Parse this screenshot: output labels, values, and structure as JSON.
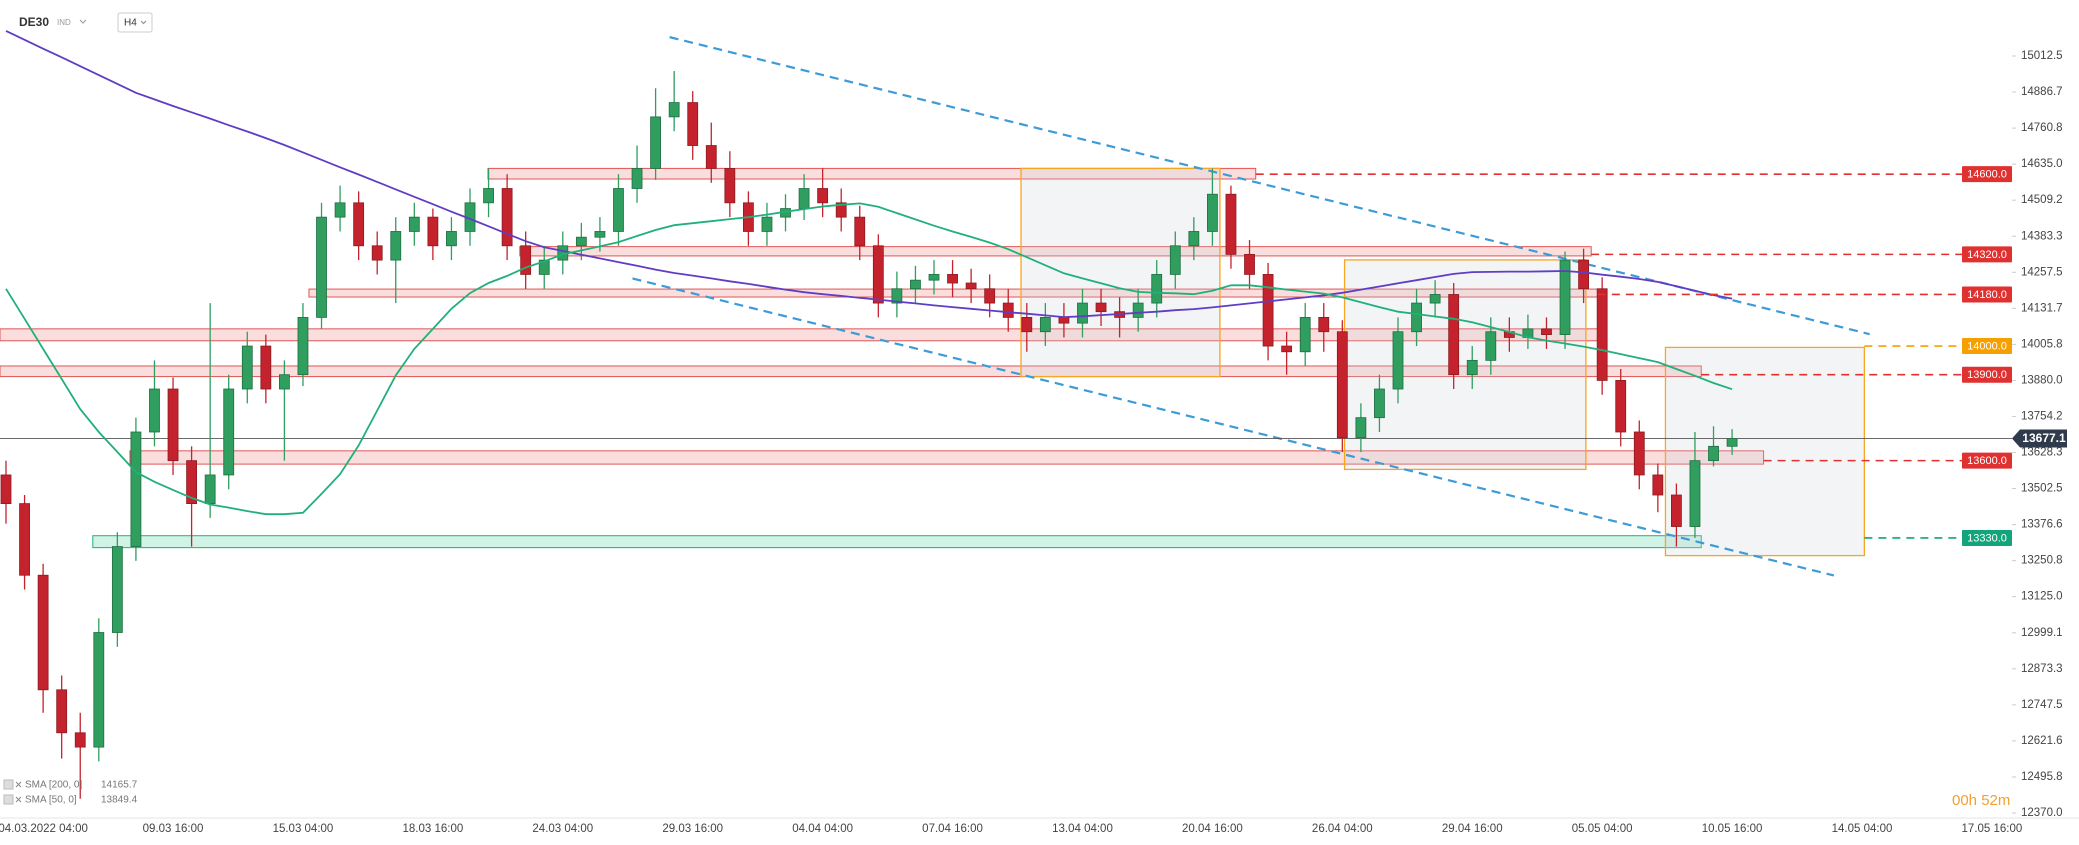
{
  "header": {
    "symbol": "DE30",
    "market": "IND",
    "timeframe": "H4"
  },
  "timer": "00h 52m",
  "chart_data": {
    "type": "candlestick",
    "categories": [
      null,
      null,
      "04.03.2022 04:00",
      null,
      null,
      null,
      null,
      null,
      null,
      "09.03 16:00",
      null,
      null,
      null,
      null,
      null,
      null,
      "15.03 04:00",
      null,
      null,
      null,
      null,
      null,
      null,
      "18.03 16:00",
      null,
      null,
      null,
      null,
      null,
      null,
      "24.03 04:00",
      null,
      null,
      null,
      null,
      null,
      null,
      "29.03 16:00",
      null,
      null,
      null,
      null,
      null,
      null,
      "04.04 04:00",
      null,
      null,
      null,
      null,
      null,
      null,
      "07.04 16:00",
      null,
      null,
      null,
      null,
      null,
      null,
      "13.04 04:00",
      null,
      null,
      null,
      null,
      null,
      null,
      "20.04 16:00",
      null,
      null,
      null,
      null,
      null,
      null,
      "26.04 04:00",
      null,
      null,
      null,
      null,
      null,
      null,
      "29.04 16:00",
      null,
      null,
      null,
      null,
      null,
      null,
      "05.05 04:00",
      null,
      null,
      null,
      null,
      null,
      null,
      "10.05 16:00",
      null,
      null,
      null,
      null,
      null,
      null,
      "14.05 04:00",
      null,
      null,
      null,
      null,
      null,
      null,
      "17.05 16:00",
      null,
      null
    ],
    "open": [
      13550,
      13450,
      13200,
      12800,
      12650,
      12600,
      13000,
      13300,
      13700,
      13850,
      13600,
      13450,
      13550,
      13850,
      14000,
      13850,
      13900,
      14100,
      14450,
      14500,
      14350,
      14300,
      14400,
      14450,
      14350,
      14400,
      14500,
      14550,
      14350,
      14250,
      14300,
      14350,
      14380,
      14400,
      14550,
      14620,
      14800,
      14850,
      14700,
      14620,
      14500,
      14400,
      14450,
      14480,
      14550,
      14500,
      14450,
      14350,
      14150,
      14200,
      14230,
      14250,
      14220,
      14200,
      14150,
      14100,
      14050,
      14100,
      14080,
      14150,
      14120,
      14100,
      14150,
      14250,
      14350,
      14400,
      14530,
      14320,
      14250,
      14000,
      13980,
      14100,
      14050,
      13680,
      13750,
      13850,
      14050,
      14150,
      14180,
      13900,
      13950,
      14050,
      14030,
      14060,
      14040,
      14300,
      14200,
      13880,
      13700,
      13550,
      13480,
      13370,
      13600,
      13650,
      null,
      null,
      null,
      null,
      null,
      null,
      null,
      null,
      null,
      null,
      null,
      null,
      null,
      null,
      null,
      null
    ],
    "high": [
      13600,
      13480,
      13240,
      12850,
      12720,
      13050,
      13350,
      13750,
      13950,
      13890,
      13650,
      14150,
      13900,
      14050,
      14040,
      13950,
      14150,
      14500,
      14560,
      14540,
      14400,
      14450,
      14500,
      14480,
      14450,
      14550,
      14620,
      14600,
      14400,
      14350,
      14400,
      14430,
      14450,
      14600,
      14700,
      14900,
      14960,
      14890,
      14780,
      14680,
      14540,
      14500,
      14530,
      14600,
      14620,
      14550,
      14490,
      14390,
      14260,
      14280,
      14300,
      14300,
      14270,
      14250,
      14200,
      14150,
      14150,
      14150,
      14200,
      14200,
      14170,
      14200,
      14300,
      14400,
      14450,
      14620,
      14560,
      14370,
      14290,
      14050,
      14150,
      14150,
      14090,
      13800,
      13900,
      14100,
      14200,
      14230,
      14220,
      14000,
      14100,
      14100,
      14110,
      14100,
      14330,
      14340,
      14240,
      13920,
      13740,
      13590,
      13520,
      13700,
      13720,
      13710,
      null,
      null,
      null,
      null,
      null,
      null,
      null,
      null,
      null,
      null,
      null,
      null,
      null,
      null,
      null,
      null
    ],
    "low": [
      13380,
      13150,
      12720,
      12560,
      12420,
      12550,
      12950,
      13250,
      13650,
      13550,
      13300,
      13400,
      13500,
      13800,
      13800,
      13600,
      13860,
      14060,
      14400,
      14300,
      14250,
      14150,
      14350,
      14300,
      14300,
      14350,
      14450,
      14300,
      14200,
      14200,
      14250,
      14300,
      14330,
      14350,
      14500,
      14580,
      14750,
      14650,
      14570,
      14450,
      14350,
      14350,
      14400,
      14440,
      14450,
      14400,
      14300,
      14100,
      14100,
      14150,
      14180,
      14170,
      14150,
      14100,
      14050,
      13980,
      14000,
      14030,
      14030,
      14070,
      14030,
      14050,
      14100,
      14200,
      14300,
      14350,
      14270,
      14200,
      13950,
      13900,
      13930,
      13980,
      13630,
      13630,
      13700,
      13800,
      14000,
      14100,
      13850,
      13850,
      13900,
      13980,
      13990,
      13990,
      13990,
      14150,
      13830,
      13650,
      13500,
      13420,
      13300,
      13330,
      13580,
      13620,
      null,
      null,
      null,
      null,
      null,
      null,
      null,
      null,
      null,
      null,
      null,
      null,
      null,
      null,
      null,
      null
    ],
    "close": [
      13450,
      13200,
      12800,
      12650,
      12600,
      13000,
      13300,
      13700,
      13850,
      13600,
      13450,
      13550,
      13850,
      14000,
      13850,
      13900,
      14100,
      14450,
      14500,
      14350,
      14300,
      14400,
      14450,
      14350,
      14400,
      14500,
      14550,
      14350,
      14250,
      14300,
      14350,
      14380,
      14400,
      14550,
      14620,
      14800,
      14850,
      14700,
      14620,
      14500,
      14400,
      14450,
      14480,
      14550,
      14500,
      14450,
      14350,
      14150,
      14200,
      14230,
      14250,
      14220,
      14200,
      14150,
      14100,
      14050,
      14100,
      14080,
      14150,
      14120,
      14100,
      14150,
      14250,
      14350,
      14400,
      14530,
      14320,
      14250,
      14000,
      13980,
      14100,
      14050,
      13680,
      13750,
      13850,
      14050,
      14150,
      14180,
      13900,
      13950,
      14050,
      14030,
      14060,
      14040,
      14300,
      14200,
      13880,
      13700,
      13550,
      13480,
      13370,
      13600,
      13650,
      13677.1,
      null,
      null,
      null,
      null,
      null,
      null,
      null,
      null,
      null,
      null,
      null,
      null,
      null,
      null,
      null,
      null
    ],
    "up_color": "#2f9e5f",
    "down_color": "#c4232d",
    "series": [
      {
        "name": "SMA [200, 0]",
        "color": "#5f3dc4",
        "values": [
          15100,
          15069,
          15038,
          15008,
          14977,
          14946,
          14915,
          14884,
          14861,
          14838,
          14816,
          14794,
          14771,
          14749,
          14726,
          14702,
          14676,
          14650,
          14624,
          14599,
          14573,
          14547,
          14521,
          14495,
          14469,
          14444,
          14418,
          14392,
          14366,
          14345,
          14332,
          14319,
          14306,
          14293,
          14280,
          14267,
          14255,
          14246,
          14236,
          14226,
          14217,
          14207,
          14197,
          14188,
          14181,
          14175,
          14168,
          14162,
          14155,
          14149,
          14142,
          14136,
          14130,
          14124,
          14118,
          14113,
          14107,
          14101,
          14104,
          14108,
          14112,
          14116,
          14120,
          14125,
          14129,
          14135,
          14142,
          14149,
          14156,
          14163,
          14170,
          14177,
          14186,
          14197,
          14208,
          14219,
          14230,
          14241,
          14252,
          14258,
          14259,
          14260,
          14260,
          14261,
          14262,
          14257,
          14249,
          14242,
          14234,
          14224,
          14209,
          14193,
          14178,
          14165.7,
          null,
          null,
          null,
          null,
          null,
          null,
          null,
          null,
          null,
          null,
          null,
          null,
          null,
          null,
          null,
          null
        ]
      },
      {
        "name": "SMA [50, 0]",
        "color": "#20b07a",
        "values": [
          14200,
          14095,
          13990,
          13885,
          13780,
          13700,
          13630,
          13560,
          13526,
          13498,
          13470,
          13447,
          13436,
          13424,
          13413,
          13413,
          13418,
          13484,
          13553,
          13653,
          13775,
          13898,
          13990,
          14060,
          14130,
          14185,
          14220,
          14245,
          14274,
          14296,
          14320,
          14334,
          14348,
          14363,
          14384,
          14405,
          14422,
          14429,
          14436,
          14443,
          14450,
          14459,
          14469,
          14478,
          14487,
          14493,
          14498,
          14486,
          14464,
          14442,
          14420,
          14400,
          14381,
          14361,
          14338,
          14310,
          14282,
          14254,
          14236,
          14219,
          14202,
          14189,
          14186,
          14184,
          14181,
          14193,
          14212,
          14212,
          14205,
          14197,
          14190,
          14183,
          14170,
          14153,
          14136,
          14120,
          14112,
          14103,
          14095,
          14083,
          14066,
          14049,
          14031,
          14019,
          14009,
          13998,
          13986,
          13972,
          13958,
          13944,
          13920,
          13896,
          13871,
          13849.4,
          null,
          null,
          null,
          null,
          null,
          null,
          null,
          null,
          null,
          null,
          null,
          null,
          null,
          null,
          null,
          null
        ]
      }
    ],
    "ylim": [
      12352.5,
      15208
    ],
    "yticks": [
      15012.5,
      14886.7,
      14760.8,
      {
        "value": 14635,
        "label": "14635.0"
      },
      14509.2,
      14383.3,
      14257.5,
      14131.7,
      14005.8,
      {
        "value": 13880,
        "label": "13880.0"
      },
      13754.2,
      13628.3,
      13502.5,
      13376.6,
      13250.8,
      {
        "value": 13125,
        "label": "13125.0"
      },
      12999.1,
      12873.3,
      12747.5,
      12621.6,
      12495.8,
      {
        "value": 12370,
        "label": "12370.0"
      }
    ],
    "levels": [
      {
        "value": 14600,
        "label": "14600.0",
        "color": "#e03131"
      },
      {
        "value": 14320,
        "label": "14320.0",
        "color": "#e03131"
      },
      {
        "value": 14180,
        "label": "14180.0",
        "color": "#e03131"
      },
      {
        "value": 14000,
        "label": "14000.0",
        "color": "#f59f00"
      },
      {
        "value": 13900,
        "label": "13900.0",
        "color": "#e03131"
      },
      {
        "value": 13600,
        "label": "13600.0",
        "color": "#e03131"
      },
      {
        "value": 13330,
        "label": "13330.0",
        "color": "#12a47a"
      }
    ]
  }
}
